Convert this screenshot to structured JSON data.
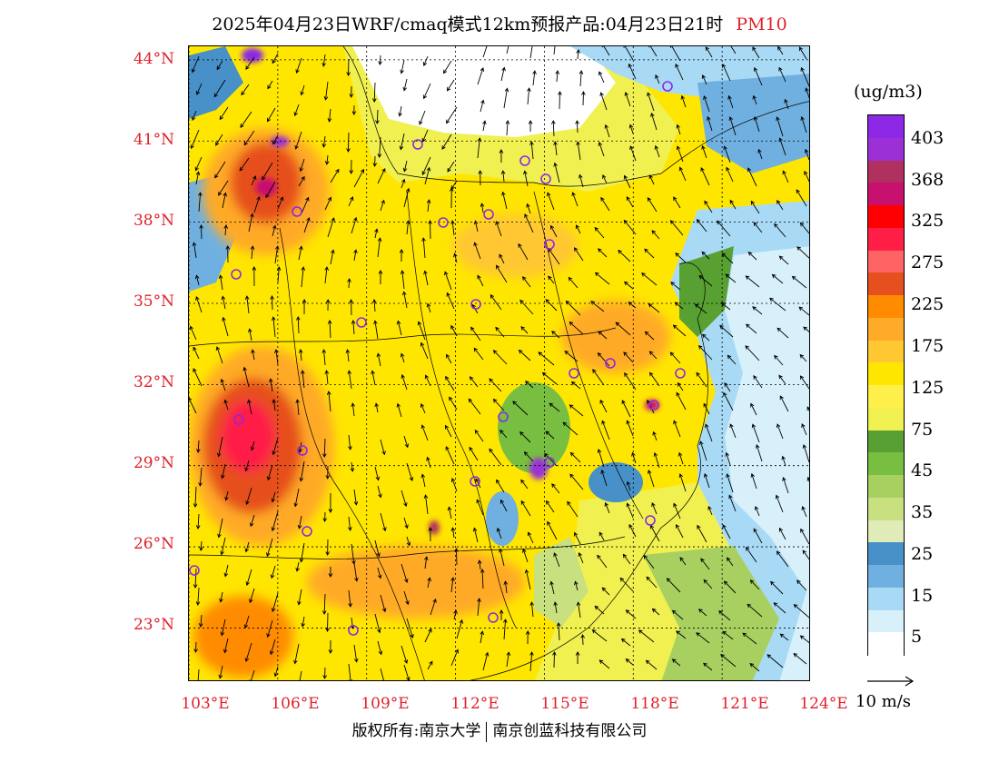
{
  "title": {
    "main": "2025年04月23日WRF/cmaq模式12km预报产品:04月23日21时",
    "pollutant": "PM10"
  },
  "axes": {
    "lat_labels": [
      "44°N",
      "41°N",
      "38°N",
      "35°N",
      "32°N",
      "29°N",
      "26°N",
      "23°N"
    ],
    "lat_values": [
      44,
      41,
      38,
      35,
      32,
      29,
      26,
      23
    ],
    "lon_labels": [
      "103°E",
      "106°E",
      "109°E",
      "112°E",
      "115°E",
      "118°E",
      "121°E",
      "124°E"
    ],
    "lon_values": [
      103,
      106,
      109,
      112,
      115,
      118,
      121,
      124
    ],
    "lat_range": [
      21,
      44.5
    ],
    "lon_range": [
      103,
      124
    ]
  },
  "legend": {
    "unit": "(ug/m3)",
    "labels": [
      "403",
      "368",
      "325",
      "275",
      "225",
      "175",
      "125",
      "75",
      "45",
      "35",
      "25",
      "15",
      "5"
    ],
    "colors": [
      "#8c28e6",
      "#9b30d6",
      "#b03060",
      "#c8106e",
      "#ff0000",
      "#ff1e46",
      "#ff6464",
      "#e6501e",
      "#ff8c00",
      "#ffaa28",
      "#ffc832",
      "#ffe600",
      "#ffef4a",
      "#f0f050",
      "#58a032",
      "#78be40",
      "#a8d060",
      "#c8e080",
      "#e0ecb8",
      "#4890c8",
      "#70b0e0",
      "#a8daf5",
      "#d8f0fa",
      "#ffffff"
    ]
  },
  "wind_reference": "10 m/s",
  "copyright": {
    "left": "版权所有:南京大学",
    "right": "南京创蓝科技有限公司"
  },
  "map_style": {
    "sea": "#d8f0fa",
    "coast_blue": "#70b0e0",
    "deep_blue": "#4890c8"
  }
}
